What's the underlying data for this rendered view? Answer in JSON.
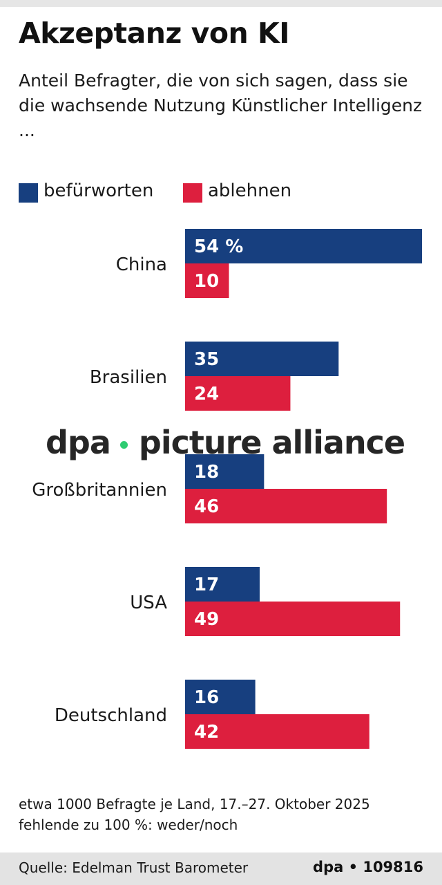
{
  "title": "Akzeptanz von KI",
  "subtitle": "Anteil Befragter, die von sich sagen, dass sie die wachsende Nutzung Künstlicher Intelligenz ...",
  "colors": {
    "approve": "#173f7f",
    "reject": "#dd1f3e"
  },
  "watermark": {
    "left": "dpa",
    "right": "picture alliance"
  },
  "chart_data": {
    "type": "bar",
    "orientation": "horizontal",
    "categories": [
      "China",
      "Brasilien",
      "Großbritannien",
      "USA",
      "Deutschland"
    ],
    "series": [
      {
        "name": "befürworten",
        "values": [
          54,
          35,
          18,
          17,
          16
        ],
        "labels": [
          "54 %",
          "35",
          "18",
          "17",
          "16"
        ]
      },
      {
        "name": "ablehnen",
        "values": [
          10,
          24,
          46,
          49,
          42
        ],
        "labels": [
          "10",
          "24",
          "46",
          "49",
          "42"
        ]
      }
    ],
    "unit": "%",
    "xlim": [
      0,
      54
    ],
    "legend": "top-left"
  },
  "notes": {
    "line1": "etwa 1000 Befragte je Land, 17.–27. Oktober 2025",
    "line2": "fehlende zu 100 %: weder/noch"
  },
  "footer": {
    "source": "Quelle: Edelman Trust Barometer",
    "agency": "dpa • 109816"
  }
}
